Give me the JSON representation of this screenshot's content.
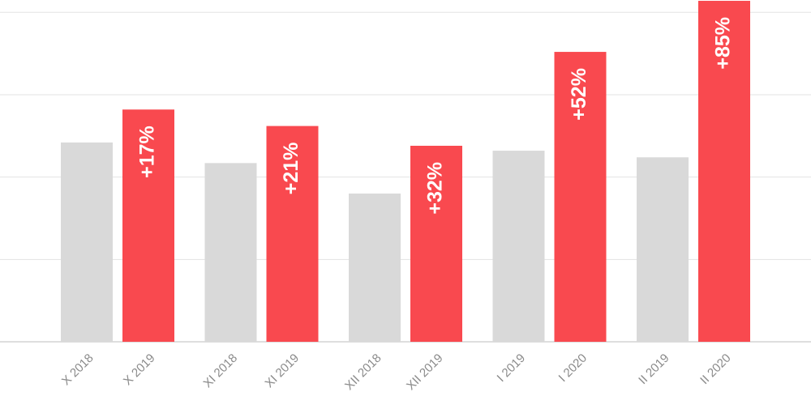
{
  "chart_data": {
    "type": "bar",
    "categories": [
      "X 2018",
      "X 2019",
      "XI 2018",
      "XI 2019",
      "XII 2018",
      "XII 2019",
      "I 2019",
      "I 2020",
      "II 2019",
      "II 2020"
    ],
    "values": [
      2.42,
      2.82,
      2.17,
      2.62,
      1.8,
      2.38,
      2.32,
      3.52,
      2.24,
      4.14
    ],
    "colors": [
      "#d9d9d9",
      "#f9494f",
      "#d9d9d9",
      "#f9494f",
      "#d9d9d9",
      "#f9494f",
      "#d9d9d9",
      "#f9494f",
      "#d9d9d9",
      "#f9494f"
    ],
    "annotations": [
      null,
      "+17%",
      null,
      "+21%",
      null,
      "+32%",
      null,
      "+52%",
      null,
      "+85%"
    ],
    "ylim": [
      0,
      4.15
    ],
    "yticks": [
      0,
      1,
      2,
      3,
      4
    ],
    "grid": true
  }
}
